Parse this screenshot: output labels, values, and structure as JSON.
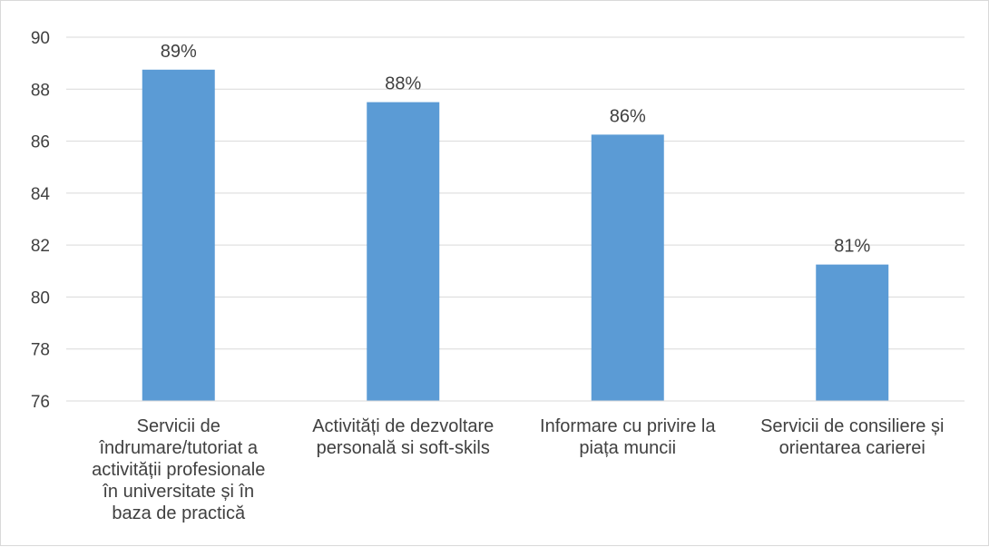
{
  "chart_data": {
    "type": "bar",
    "categories": [
      [
        "Servicii de",
        "îndrumare/tutoriat a",
        "activității profesionale",
        "în universitate și în",
        "baza de practică"
      ],
      [
        "Activități de dezvoltare",
        "personală si soft-skils"
      ],
      [
        "Informare cu privire la",
        "piața muncii"
      ],
      [
        "Servicii de consiliere și",
        "orientarea carierei"
      ]
    ],
    "values": [
      88.75,
      87.5,
      86.25,
      81.25
    ],
    "data_labels": [
      "89%",
      "88%",
      "86%",
      "81%"
    ],
    "ylim": [
      76,
      90
    ],
    "yticks": [
      76,
      78,
      80,
      82,
      84,
      86,
      88,
      90
    ],
    "ytick_labels": [
      "76",
      "78",
      "80",
      "82",
      "84",
      "86",
      "88",
      "90"
    ],
    "grid": true,
    "legend": "none",
    "title": "",
    "xlabel": "",
    "ylabel": "",
    "bar_color": "#5b9bd5",
    "grid_color": "#d9d9d9",
    "text_color": "#404040"
  }
}
